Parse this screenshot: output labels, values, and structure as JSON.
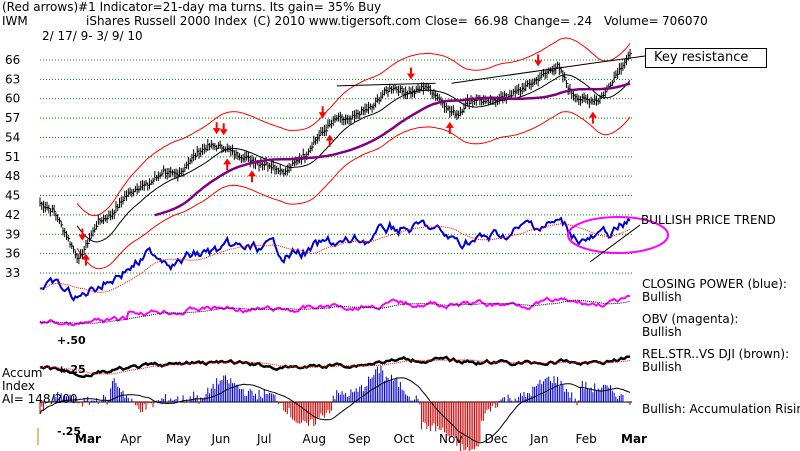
{
  "header": {
    "line1": "(Red arrows)#1 Indicator=21-day ma turns.  Its gain= 35% Buy",
    "symbol": "IWM",
    "name": "iShares Russell 2000 Index",
    "copyright": "(C) 2010 www.tigersoft.com",
    "close_label": "Close=",
    "close": "66.98",
    "change_label": "Change=",
    "change": ".24",
    "volume_label": "Volume=",
    "volume": "706070",
    "date_range": "2/ 17/ 9- 3/ 9/ 10"
  },
  "annotations": {
    "key_resistance": "Key resistance",
    "bullish_price_trend": "BULLISH PRICE TREND",
    "closing_power_title": "CLOSING POWER (blue):",
    "closing_power_value": "Bullish",
    "obv_title": "OBV (magenta):",
    "obv_value": "Bullish",
    "relstr_title": "REL.STR..VS DJI (brown):",
    "relstr_value": "Bullish",
    "accum_rising": "Bullish: Accumulation Rising",
    "accum_label_1": "Accum",
    "accum_label_2": "Index",
    "accum_ai": "AI= 148/200",
    "accum_top": "+.50",
    "accum_mid": "+.25",
    "accum_bottom": "-.25"
  },
  "colors": {
    "price_bars": "#000000",
    "ma_21": "#000000",
    "ma_65": "#800080",
    "bands": "#ff0000",
    "closing_power": "#0000cc",
    "obv": "#ff00ff",
    "rel_str": "#000000",
    "accum_pos": "#0000cc",
    "accum_neg": "#cc0000",
    "gridline": "#008000",
    "arrows": "#ff0000"
  },
  "chart_data": {
    "type": "line",
    "title": "iShares Russell 2000 Index (IWM)",
    "date_range": "2/17/09 - 3/9/10",
    "y_ticks": [
      66,
      63,
      60,
      57,
      54,
      51,
      48,
      45,
      42,
      39,
      36,
      33
    ],
    "ylim": [
      33,
      67.5
    ],
    "x_ticks": [
      "Mar",
      "Apr",
      "May",
      "Jun",
      "Jul",
      "Aug",
      "Sep",
      "Oct",
      "Nov",
      "Dec",
      "Jan",
      "Feb",
      "Mar"
    ],
    "price_knots": [
      [
        0,
        43.8
      ],
      [
        8,
        42.5
      ],
      [
        16,
        38.2
      ],
      [
        22,
        35.0
      ],
      [
        27,
        37.8
      ],
      [
        33,
        41.0
      ],
      [
        40,
        41.9
      ],
      [
        48,
        44.8
      ],
      [
        55,
        46.2
      ],
      [
        62,
        46.8
      ],
      [
        70,
        48.8
      ],
      [
        78,
        48.0
      ],
      [
        84,
        50.2
      ],
      [
        90,
        51.8
      ],
      [
        96,
        52.7
      ],
      [
        104,
        52.5
      ],
      [
        110,
        51.5
      ],
      [
        118,
        50.7
      ],
      [
        124,
        50.0
      ],
      [
        130,
        49.8
      ],
      [
        134,
        49.2
      ],
      [
        139,
        48.6
      ],
      [
        145,
        50.3
      ],
      [
        150,
        51.3
      ],
      [
        157,
        54.0
      ],
      [
        162,
        55.3
      ],
      [
        168,
        57.0
      ],
      [
        175,
        56.6
      ],
      [
        180,
        57.7
      ],
      [
        188,
        58.7
      ],
      [
        195,
        61.0
      ],
      [
        200,
        61.8
      ],
      [
        206,
        61.0
      ],
      [
        212,
        61.0
      ],
      [
        218,
        62.0
      ],
      [
        223,
        60.8
      ],
      [
        228,
        59.5
      ],
      [
        232,
        58.0
      ],
      [
        237,
        57.6
      ],
      [
        242,
        59.5
      ],
      [
        248,
        60.0
      ],
      [
        252,
        59.3
      ],
      [
        258,
        60.0
      ],
      [
        264,
        60.3
      ],
      [
        270,
        61.1
      ],
      [
        276,
        62.0
      ],
      [
        282,
        63.1
      ],
      [
        288,
        64.3
      ],
      [
        293,
        65.0
      ],
      [
        297,
        63.0
      ],
      [
        300,
        61.2
      ],
      [
        305,
        60.0
      ],
      [
        310,
        59.8
      ],
      [
        316,
        59.8
      ],
      [
        320,
        61.0
      ],
      [
        325,
        63.3
      ],
      [
        330,
        65.4
      ],
      [
        334,
        66.98
      ]
    ],
    "series": [
      {
        "name": "IWM daily bars",
        "color": "#000000"
      },
      {
        "name": "21-day moving average",
        "color": "#000000"
      },
      {
        "name": "65-day moving average",
        "color": "#800080"
      },
      {
        "name": "Upper / lower bands",
        "color": "#ff0000"
      },
      {
        "name": "Closing Power",
        "color": "#0000cc"
      },
      {
        "name": "OBV",
        "color": "#ff00ff"
      },
      {
        "name": "Relative Strength vs DJI",
        "color": "#000000"
      },
      {
        "name": "Accumulation Index",
        "color": "#0000cc"
      }
    ],
    "buy_arrow_days": [
      26,
      106,
      120,
      164,
      232,
      313
    ],
    "sell_arrow_days": [
      24,
      100,
      104,
      160,
      210,
      282
    ],
    "resistance_line": [
      [
        168,
        62.0
      ],
      [
        224,
        62.4
      ],
      [
        233,
        62.4
      ],
      [
        315,
        65.6
      ]
    ],
    "accum_index_ai": "148/200"
  }
}
